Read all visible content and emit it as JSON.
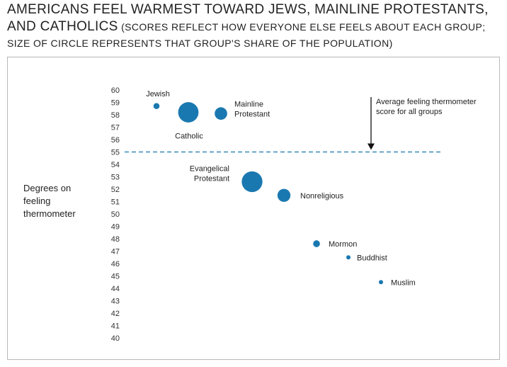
{
  "title": {
    "main": "AMERICANS FEEL WARMEST TOWARD JEWS, MAINLINE PROTESTANTS, AND CATHOLICS",
    "sub": "(SCORES REFLECT HOW EVERYONE ELSE FEELS ABOUT EACH GROUP; SIZE OF CIRCLE REPRESENTS THAT GROUP'S SHARE OF THE POPULATION)"
  },
  "chart_data": {
    "type": "scatter",
    "ylabel": [
      "Degrees on",
      "feeling",
      "thermometer"
    ],
    "ylim": [
      40,
      60
    ],
    "yticks": [
      40,
      41,
      42,
      43,
      44,
      45,
      46,
      47,
      48,
      49,
      50,
      51,
      52,
      53,
      54,
      55,
      56,
      57,
      58,
      59,
      60
    ],
    "grid": false,
    "bubble_color": "#1a78b0",
    "points": [
      {
        "name": "Jewish",
        "label_lines": [
          "Jewish"
        ],
        "x": 1,
        "y": 58.7,
        "size": 1.4
      },
      {
        "name": "Catholic",
        "label_lines": [
          "Catholic"
        ],
        "x": 2,
        "y": 58.2,
        "size": 16
      },
      {
        "name": "Mainline Protestant",
        "label_lines": [
          "Mainline",
          "Protestant"
        ],
        "x": 3,
        "y": 58.1,
        "size": 6
      },
      {
        "name": "Evangelical Protestant",
        "label_lines": [
          "Evangelical",
          "Protestant"
        ],
        "x": 4,
        "y": 52.6,
        "size": 16.5
      },
      {
        "name": "Nonreligious",
        "label_lines": [
          "Nonreligious"
        ],
        "x": 5,
        "y": 51.5,
        "size": 6.5
      },
      {
        "name": "Mormon",
        "label_lines": [
          "Mormon"
        ],
        "x": 6,
        "y": 47.6,
        "size": 1.8
      },
      {
        "name": "Buddhist",
        "label_lines": [
          "Buddhist"
        ],
        "x": 7,
        "y": 46.5,
        "size": 0.7
      },
      {
        "name": "Muslim",
        "label_lines": [
          "Muslim"
        ],
        "x": 8,
        "y": 44.5,
        "size": 0.7
      }
    ],
    "reference_line": {
      "y": 55,
      "label_lines": [
        "Average feeling thermometer",
        "score for all groups"
      ],
      "color": "#1a78b0",
      "style": "dashed"
    }
  }
}
